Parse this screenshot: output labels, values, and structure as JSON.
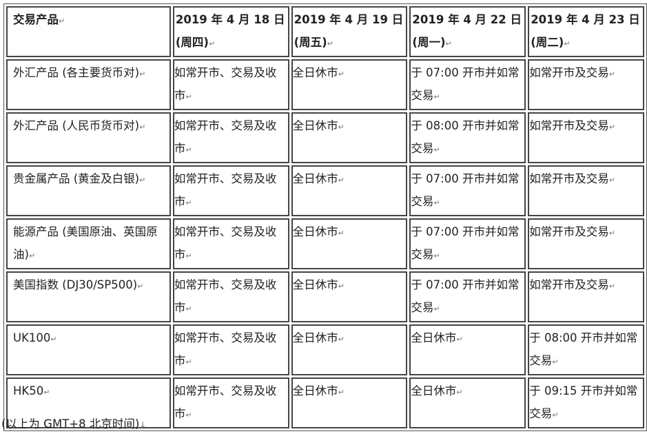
{
  "headers": [
    "交易产品",
    "2019 年 4 月 18 日(周四)",
    "2019 年 4 月 19 日(周五)",
    "2019 年 4 月 22 日(周一)",
    "2019 年 4 月 23 日(周二)"
  ],
  "rows": [
    [
      "外汇产品 (各主要货币对)",
      "如常开市、交易及收市",
      "全日休市",
      "于 07:00 开市并如常交易",
      "如常开市及交易"
    ],
    [
      "外汇产品 (人民币货币对)",
      "如常开市、交易及收市",
      "全日休市",
      "于 08:00 开市并如常交易",
      "如常开市及交易"
    ],
    [
      "贵金属产品 (黄金及白银)",
      "如常开市、交易及收市",
      "全日休市",
      "于 07:00 开市并如常交易",
      "如常开市及交易"
    ],
    [
      "能源产品 (美国原油、英国原油)",
      "如常开市、交易及收市",
      "全日休市",
      "于 07:00 开市并如常交易",
      "如常开市及交易"
    ],
    [
      "美国指数 (DJ30/SP500)",
      "如常开市、交易及收市",
      "全日休市",
      "于 07:00 开市并如常交易",
      "如常开市及交易"
    ],
    [
      "UK100",
      "如常开市、交易及收市",
      "全日休市",
      "全日休市",
      "于 08:00 开市并如常交易"
    ],
    [
      "HK50",
      "如常开市、交易及收市",
      "全日休市",
      "全日休市",
      "于 09:15 开市并如常交易"
    ]
  ],
  "footnote": "(以上为 GMT+8  北京时间)"
}
